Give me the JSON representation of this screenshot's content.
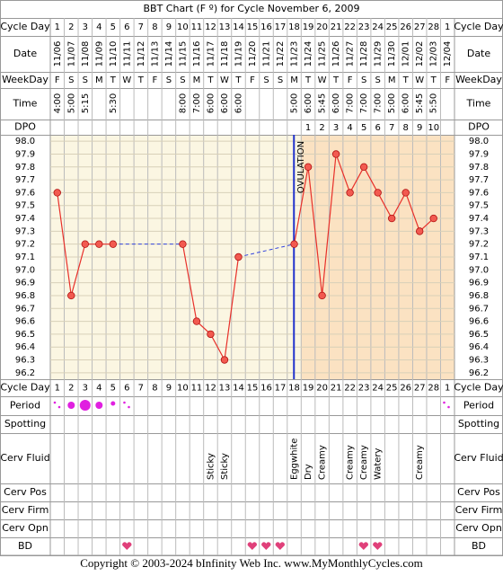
{
  "chart_data": {
    "type": "line",
    "title": "BBT Chart (F º) for Cycle November 6, 2009",
    "row_labels": {
      "cycle_day": "Cycle Day",
      "date": "Date",
      "weekday": "WeekDay",
      "time": "Time",
      "dpo": "DPO",
      "period": "Period",
      "spotting": "Spotting",
      "cerv_fluid": "Cerv Fluid",
      "cerv_pos": "Cerv Pos",
      "cerv_firm": "Cerv Firm",
      "cerv_opn": "Cerv Opn",
      "bd": "BD"
    },
    "categories": [
      1,
      2,
      3,
      4,
      5,
      6,
      7,
      8,
      9,
      10,
      11,
      12,
      13,
      14,
      15,
      16,
      17,
      18,
      19,
      20,
      21,
      22,
      23,
      24,
      25,
      26,
      27,
      28,
      1
    ],
    "dates": [
      "11/06",
      "11/07",
      "11/08",
      "11/09",
      "11/10",
      "11/11",
      "11/12",
      "11/13",
      "11/14",
      "11/15",
      "11/16",
      "11/17",
      "11/18",
      "11/19",
      "11/20",
      "11/21",
      "11/22",
      "11/23",
      "11/24",
      "11/25",
      "11/26",
      "11/27",
      "11/28",
      "11/29",
      "11/30",
      "12/01",
      "12/02",
      "12/03",
      "12/04"
    ],
    "weekdays": [
      "F",
      "S",
      "S",
      "M",
      "T",
      "W",
      "T",
      "F",
      "S",
      "S",
      "M",
      "T",
      "W",
      "T",
      "F",
      "S",
      "S",
      "M",
      "T",
      "W",
      "T",
      "F",
      "S",
      "S",
      "M",
      "T",
      "W",
      "T",
      "F"
    ],
    "times": [
      "4:00",
      "5:00",
      "5:15",
      null,
      "5:30",
      null,
      null,
      null,
      null,
      "8:00",
      "7:00",
      "6:00",
      "6:00",
      "6:00",
      null,
      null,
      null,
      "5:00",
      "6:00",
      "5:45",
      "6:00",
      "7:00",
      "7:00",
      "7:00",
      "5:00",
      "6:00",
      "5:45",
      "5:50",
      null
    ],
    "dpo": [
      null,
      null,
      null,
      null,
      null,
      null,
      null,
      null,
      null,
      null,
      null,
      null,
      null,
      null,
      null,
      null,
      null,
      null,
      1,
      2,
      3,
      4,
      5,
      6,
      7,
      8,
      9,
      10,
      null
    ],
    "cerv_fluid": [
      null,
      null,
      null,
      null,
      null,
      null,
      null,
      null,
      null,
      null,
      null,
      "Sticky",
      "Sticky",
      null,
      null,
      null,
      null,
      "Eggwhite",
      "Dry",
      "Creamy",
      null,
      "Creamy",
      "Creamy",
      "Watery",
      null,
      null,
      "Creamy",
      null,
      null
    ],
    "values": [
      97.6,
      96.8,
      97.2,
      97.2,
      97.2,
      null,
      null,
      null,
      null,
      97.2,
      96.6,
      96.5,
      96.3,
      97.1,
      null,
      null,
      null,
      97.2,
      97.8,
      96.8,
      97.9,
      97.6,
      97.8,
      97.6,
      97.4,
      97.6,
      97.3,
      97.4,
      null
    ],
    "color": "#e8302a",
    "connector_color": "#3344dd",
    "annotation": "OVULATION",
    "ylim": [
      96.15,
      98.05
    ],
    "yticks": [
      {
        "value": 98,
        "label": "98.0"
      },
      97.9,
      97.8,
      97.7,
      97.6,
      97.5,
      97.4,
      97.3,
      97.2,
      97.1,
      {
        "value": 97,
        "label": "97.0"
      },
      96.9,
      96.8,
      96.7,
      96.6,
      96.5,
      96.4,
      96.3,
      96.2
    ],
    "grid": true,
    "footer": "Copyright © 2003-2024 bInfinity Web Inc.     www.MyMonthlyCycles.com"
  }
}
